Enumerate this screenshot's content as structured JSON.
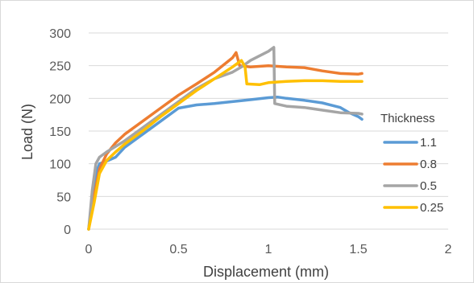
{
  "chart_data": {
    "type": "line",
    "xlabel": "Displacement (mm)",
    "ylabel": "Load (N)",
    "xlim": [
      0,
      2
    ],
    "ylim": [
      0,
      300
    ],
    "x_ticks": [
      "0",
      "0.5",
      "1",
      "1.5",
      "2"
    ],
    "y_ticks": [
      "0",
      "50",
      "100",
      "150",
      "200",
      "250",
      "300"
    ],
    "grid": "horizontal",
    "legend": {
      "title": "Thickness",
      "position": "right"
    },
    "series": [
      {
        "name": "1.1",
        "color": "#5B9BD5",
        "points": [
          [
            0,
            0
          ],
          [
            0.02,
            40
          ],
          [
            0.04,
            85
          ],
          [
            0.06,
            100
          ],
          [
            0.1,
            104
          ],
          [
            0.15,
            110
          ],
          [
            0.2,
            125
          ],
          [
            0.3,
            145
          ],
          [
            0.4,
            165
          ],
          [
            0.5,
            185
          ],
          [
            0.6,
            190
          ],
          [
            0.7,
            192
          ],
          [
            0.8,
            195
          ],
          [
            0.9,
            198
          ],
          [
            1.0,
            201
          ],
          [
            1.05,
            202
          ],
          [
            1.1,
            200
          ],
          [
            1.2,
            197
          ],
          [
            1.3,
            193
          ],
          [
            1.4,
            186
          ],
          [
            1.45,
            178
          ],
          [
            1.5,
            172
          ],
          [
            1.52,
            168
          ]
        ]
      },
      {
        "name": "0.8",
        "color": "#ED7D31",
        "points": [
          [
            0,
            0
          ],
          [
            0.03,
            50
          ],
          [
            0.06,
            92
          ],
          [
            0.1,
            115
          ],
          [
            0.15,
            132
          ],
          [
            0.2,
            145
          ],
          [
            0.3,
            165
          ],
          [
            0.4,
            185
          ],
          [
            0.5,
            205
          ],
          [
            0.6,
            222
          ],
          [
            0.7,
            240
          ],
          [
            0.8,
            262
          ],
          [
            0.82,
            270
          ],
          [
            0.84,
            250
          ],
          [
            0.9,
            248
          ],
          [
            1.0,
            250
          ],
          [
            1.1,
            248
          ],
          [
            1.2,
            247
          ],
          [
            1.3,
            242
          ],
          [
            1.4,
            238
          ],
          [
            1.5,
            237
          ],
          [
            1.52,
            238
          ]
        ]
      },
      {
        "name": "0.5",
        "color": "#A5A5A5",
        "points": [
          [
            0,
            0
          ],
          [
            0.02,
            60
          ],
          [
            0.04,
            100
          ],
          [
            0.06,
            110
          ],
          [
            0.1,
            118
          ],
          [
            0.2,
            135
          ],
          [
            0.3,
            155
          ],
          [
            0.4,
            175
          ],
          [
            0.5,
            195
          ],
          [
            0.6,
            215
          ],
          [
            0.7,
            230
          ],
          [
            0.8,
            240
          ],
          [
            0.85,
            248
          ],
          [
            0.9,
            258
          ],
          [
            1.0,
            272
          ],
          [
            1.03,
            278
          ],
          [
            1.035,
            192
          ],
          [
            1.1,
            188
          ],
          [
            1.2,
            186
          ],
          [
            1.3,
            182
          ],
          [
            1.4,
            178
          ],
          [
            1.5,
            177
          ],
          [
            1.52,
            176
          ]
        ]
      },
      {
        "name": "0.25",
        "color": "#FFC000",
        "points": [
          [
            0,
            0
          ],
          [
            0.03,
            40
          ],
          [
            0.06,
            85
          ],
          [
            0.1,
            105
          ],
          [
            0.15,
            118
          ],
          [
            0.2,
            130
          ],
          [
            0.3,
            150
          ],
          [
            0.4,
            172
          ],
          [
            0.5,
            192
          ],
          [
            0.6,
            212
          ],
          [
            0.7,
            230
          ],
          [
            0.8,
            248
          ],
          [
            0.85,
            258
          ],
          [
            0.87,
            248
          ],
          [
            0.88,
            222
          ],
          [
            0.95,
            221
          ],
          [
            1.0,
            224
          ],
          [
            1.1,
            226
          ],
          [
            1.2,
            227
          ],
          [
            1.3,
            227
          ],
          [
            1.4,
            226
          ],
          [
            1.5,
            226
          ],
          [
            1.52,
            226
          ]
        ]
      }
    ]
  }
}
